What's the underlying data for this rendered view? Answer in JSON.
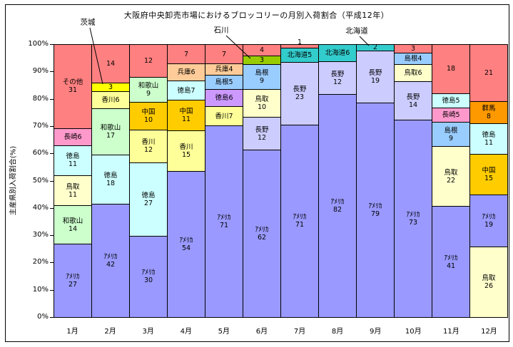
{
  "chart_data": {
    "type": "bar",
    "variant": "stacked-100-percent",
    "title": "大阪府中央卸売市場におけるブロッコリーの月別入荷割合（平成12年）",
    "ylabel": "主産県別入荷割合(%)",
    "ylim": [
      0,
      100
    ],
    "grid": false,
    "legend": "none",
    "ytick_labels": [
      "0%",
      "10%",
      "20%",
      "30%",
      "40%",
      "50%",
      "60%",
      "70%",
      "80%",
      "90%",
      "100%"
    ],
    "categories": [
      "1月",
      "2月",
      "3月",
      "4月",
      "5月",
      "6月",
      "7月",
      "8月",
      "9月",
      "10月",
      "11月",
      "12月"
    ],
    "unit": "%",
    "columns": [
      {
        "month": "1月",
        "segments": [
          {
            "name": "アメリカ",
            "value": 27,
            "color": "#9999FF",
            "label": [
              "ｱﾒﾘｶ",
              "27"
            ]
          },
          {
            "name": "和歌山",
            "value": 14,
            "color": "#CCFFCC",
            "label": [
              "和歌山",
              "14"
            ]
          },
          {
            "name": "鳥取",
            "value": 11,
            "color": "#FFFFCC",
            "label": [
              "鳥取",
              "11"
            ]
          },
          {
            "name": "徳島",
            "value": 11,
            "color": "#CCFFFF",
            "label": [
              "徳島",
              "11"
            ]
          },
          {
            "name": "長崎",
            "value": 6,
            "color": "#FF99CC",
            "label": [
              "長崎6"
            ]
          },
          {
            "name": "その他",
            "value": 31,
            "color": "#FF8080",
            "label": [
              "その他",
              "31"
            ]
          }
        ]
      },
      {
        "month": "2月",
        "segments": [
          {
            "name": "アメリカ",
            "value": 42,
            "color": "#9999FF",
            "label": [
              "ｱﾒﾘｶ",
              "42"
            ]
          },
          {
            "name": "徳島",
            "value": 18,
            "color": "#CCFFFF",
            "label": [
              "徳島",
              "18"
            ]
          },
          {
            "name": "和歌山",
            "value": 17,
            "color": "#CCFFCC",
            "label": [
              "和歌山",
              "17"
            ]
          },
          {
            "name": "香川",
            "value": 6,
            "color": "#FFFF99",
            "label": [
              "香川6"
            ]
          },
          {
            "name": "茨城",
            "value": 3,
            "color": "#FFFF00",
            "label": [
              "3"
            ]
          },
          {
            "name": "その他",
            "value": 14,
            "color": "#FF8080",
            "label": [
              "14"
            ]
          }
        ]
      },
      {
        "month": "3月",
        "segments": [
          {
            "name": "アメリカ",
            "value": 30,
            "color": "#9999FF",
            "label": [
              "ｱﾒﾘｶ",
              "30"
            ]
          },
          {
            "name": "徳島",
            "value": 27,
            "color": "#CCFFFF",
            "label": [
              "徳島",
              "27"
            ]
          },
          {
            "name": "香川",
            "value": 12,
            "color": "#FFFF99",
            "label": [
              "香川",
              "12"
            ]
          },
          {
            "name": "中国",
            "value": 10,
            "color": "#FFCC00",
            "label": [
              "中国",
              "10"
            ]
          },
          {
            "name": "和歌山",
            "value": 9,
            "color": "#CCFFCC",
            "label": [
              "和歌山",
              "9"
            ]
          },
          {
            "name": "その他",
            "value": 12,
            "color": "#FF8080",
            "label": [
              "12"
            ]
          }
        ]
      },
      {
        "month": "4月",
        "segments": [
          {
            "name": "アメリカ",
            "value": 54,
            "color": "#9999FF",
            "label": [
              "ｱﾒﾘｶ",
              "54"
            ]
          },
          {
            "name": "香川",
            "value": 15,
            "color": "#FFFF99",
            "label": [
              "香川",
              "15"
            ]
          },
          {
            "name": "中国",
            "value": 11,
            "color": "#FFCC00",
            "label": [
              "中国",
              "11"
            ]
          },
          {
            "name": "徳島",
            "value": 7,
            "color": "#CCFFFF",
            "label": [
              "徳島7"
            ]
          },
          {
            "name": "兵庫",
            "value": 6,
            "color": "#FFCC99",
            "label": [
              "兵庫6"
            ]
          },
          {
            "name": "その他",
            "value": 7,
            "color": "#FF8080",
            "label": [
              "7"
            ]
          }
        ]
      },
      {
        "month": "5月",
        "segments": [
          {
            "name": "アメリカ",
            "value": 71,
            "color": "#9999FF",
            "label": [
              "ｱﾒﾘｶ",
              "71"
            ]
          },
          {
            "name": "香川",
            "value": 7,
            "color": "#FFFF99",
            "label": [
              "香川7"
            ]
          },
          {
            "name": "徳島",
            "value": 6,
            "color": "#CC99FF",
            "label": [
              "徳島6"
            ]
          },
          {
            "name": "島根",
            "value": 5,
            "color": "#99CCFF",
            "label": [
              "島根5"
            ]
          },
          {
            "name": "兵庫",
            "value": 4,
            "color": "#FFCC99",
            "label": [
              "兵庫4"
            ]
          },
          {
            "name": "その他",
            "value": 7,
            "color": "#FF8080",
            "label": [
              "7"
            ]
          }
        ]
      },
      {
        "month": "6月",
        "segments": [
          {
            "name": "アメリカ",
            "value": 62,
            "color": "#9999FF",
            "label": [
              "ｱﾒﾘｶ",
              "62"
            ]
          },
          {
            "name": "長野",
            "value": 12,
            "color": "#CCCCFF",
            "label": [
              "長野",
              "12"
            ]
          },
          {
            "name": "鳥取",
            "value": 10,
            "color": "#FFFFCC",
            "label": [
              "鳥取",
              "10"
            ]
          },
          {
            "name": "島根",
            "value": 9,
            "color": "#99CCFF",
            "label": [
              "島根",
              "9"
            ]
          },
          {
            "name": "石川",
            "value": 3,
            "color": "#99CC00",
            "label": [
              "3"
            ]
          },
          {
            "name": "その他",
            "value": 4,
            "color": "#FF8080",
            "label": [
              "4"
            ]
          }
        ]
      },
      {
        "month": "7月",
        "segments": [
          {
            "name": "アメリカ",
            "value": 71,
            "color": "#9999FF",
            "label": [
              "ｱﾒﾘｶ",
              "71"
            ]
          },
          {
            "name": "長野",
            "value": 23,
            "color": "#CCCCFF",
            "label": [
              "長野",
              "23"
            ]
          },
          {
            "name": "北海道",
            "value": 5,
            "color": "#33CCCC",
            "label": [
              "北海道5"
            ]
          },
          {
            "name": "その他",
            "value": 1,
            "color": "#FF8080",
            "label": [
              "1"
            ],
            "label_pos": "above"
          }
        ]
      },
      {
        "month": "8月",
        "segments": [
          {
            "name": "アメリカ",
            "value": 82,
            "color": "#9999FF",
            "label": [
              "ｱﾒﾘｶ",
              "82"
            ]
          },
          {
            "name": "長野",
            "value": 12,
            "color": "#CCCCFF",
            "label": [
              "長野",
              "12"
            ]
          },
          {
            "name": "北海道",
            "value": 6,
            "color": "#33CCCC",
            "label": [
              "北海道6"
            ]
          }
        ]
      },
      {
        "month": "9月",
        "segments": [
          {
            "name": "アメリカ",
            "value": 79,
            "color": "#9999FF",
            "label": [
              "ｱﾒﾘｶ",
              "79"
            ]
          },
          {
            "name": "長野",
            "value": 19,
            "color": "#CCCCFF",
            "label": [
              "長野",
              "19"
            ]
          },
          {
            "name": "北海道",
            "value": 2,
            "color": "#33CCCC",
            "label": [
              "2"
            ]
          }
        ]
      },
      {
        "month": "10月",
        "segments": [
          {
            "name": "アメリカ",
            "value": 73,
            "color": "#9999FF",
            "label": [
              "ｱﾒﾘｶ",
              "73"
            ]
          },
          {
            "name": "長野",
            "value": 14,
            "color": "#CCCCFF",
            "label": [
              "長野",
              "14"
            ]
          },
          {
            "name": "鳥取",
            "value": 6,
            "color": "#FFFFCC",
            "label": [
              "鳥取6"
            ]
          },
          {
            "name": "島根",
            "value": 4,
            "color": "#99CCFF",
            "label": [
              "島根4"
            ]
          },
          {
            "name": "その他",
            "value": 3,
            "color": "#FF8080",
            "label": [
              "3"
            ]
          }
        ]
      },
      {
        "month": "11月",
        "segments": [
          {
            "name": "アメリカ",
            "value": 41,
            "color": "#9999FF",
            "label": [
              "ｱﾒﾘｶ",
              "41"
            ]
          },
          {
            "name": "鳥取",
            "value": 22,
            "color": "#FFFFCC",
            "label": [
              "鳥取",
              "22"
            ]
          },
          {
            "name": "島根",
            "value": 9,
            "color": "#99CCFF",
            "label": [
              "島根",
              "9"
            ]
          },
          {
            "name": "長崎",
            "value": 5,
            "color": "#FF99CC",
            "label": [
              "長崎5"
            ]
          },
          {
            "name": "徳島",
            "value": 5,
            "color": "#CCFFFF",
            "label": [
              "徳島5"
            ]
          },
          {
            "name": "その他",
            "value": 18,
            "color": "#FF8080",
            "label": [
              "18"
            ]
          }
        ]
      },
      {
        "month": "12月",
        "segments": [
          {
            "name": "鳥取",
            "value": 26,
            "color": "#FFFFCC",
            "label": [
              "鳥取",
              "26"
            ]
          },
          {
            "name": "アメリカ",
            "value": 19,
            "color": "#9999FF",
            "label": [
              "ｱﾒﾘｶ",
              "19"
            ]
          },
          {
            "name": "中国",
            "value": 15,
            "color": "#FFCC00",
            "label": [
              "中国",
              "15"
            ]
          },
          {
            "name": "徳島",
            "value": 11,
            "color": "#CCFFFF",
            "label": [
              "徳島",
              "11"
            ]
          },
          {
            "name": "群馬",
            "value": 8,
            "color": "#FF9900",
            "label": [
              "群馬",
              "8"
            ]
          },
          {
            "name": "その他",
            "value": 21,
            "color": "#FF8080",
            "label": [
              "21"
            ]
          }
        ]
      }
    ],
    "annotations": [
      {
        "id": "ibaraki",
        "text": "茨城",
        "points_to": "2月の茨城3"
      },
      {
        "id": "ishikawa",
        "text": "石川",
        "points_to": "6月の石川3"
      },
      {
        "id": "hokkaido",
        "text": "北海道",
        "points_to": "9月の北海道2"
      }
    ],
    "colors": {
      "america": "#9999FF",
      "wakayama": "#CCFFCC",
      "tottori": "#FFFFCC",
      "tokushima": "#CCFFFF",
      "nagasaki": "#FF99CC",
      "sonota": "#FF8080",
      "kagawa": "#FFFF99",
      "ibaraki": "#FFFF00",
      "chugoku": "#FFCC00",
      "hyogo": "#FFCC99",
      "shimane": "#99CCFF",
      "ishikawa": "#99CC00",
      "nagano": "#CCCCFF",
      "hokkaido": "#33CCCC",
      "gunma": "#FF9900",
      "tokushima_may": "#CC99FF"
    }
  }
}
